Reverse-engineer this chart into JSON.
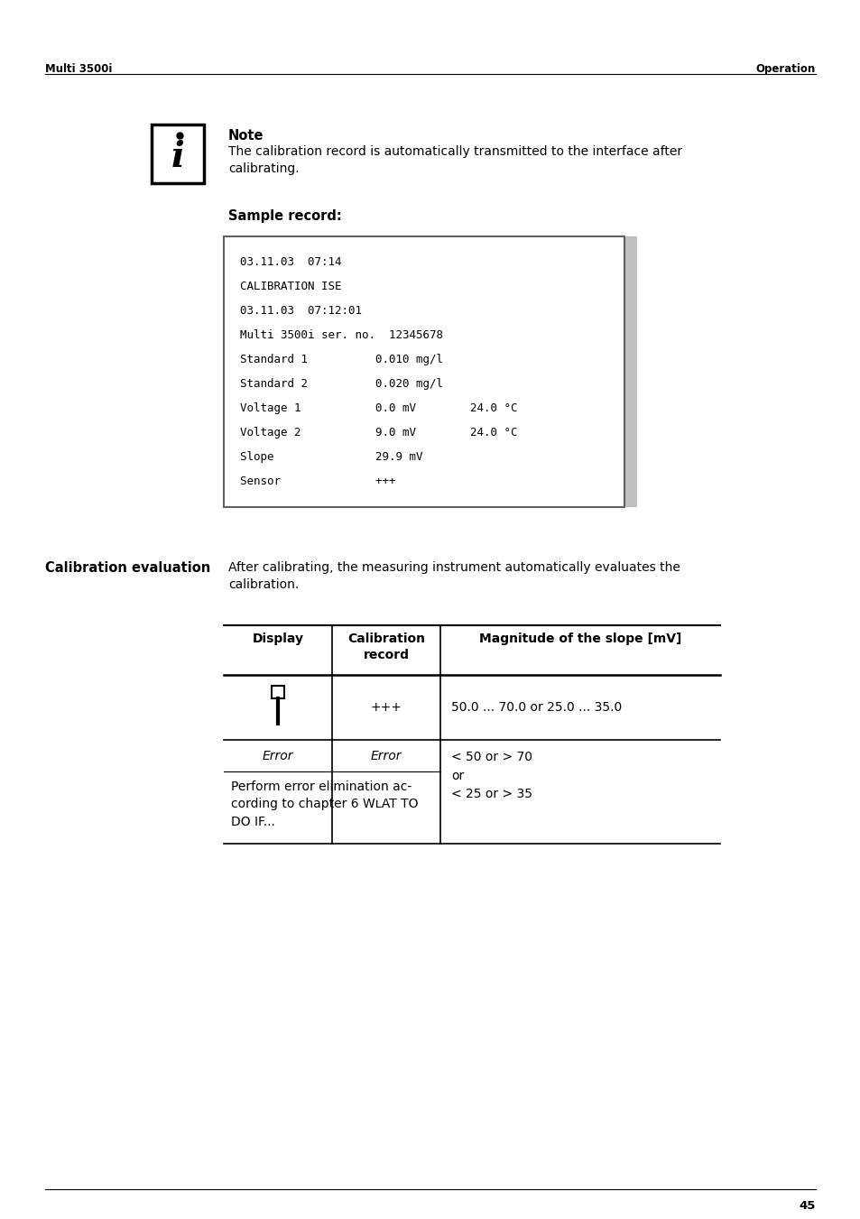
{
  "page_bg": "#ffffff",
  "header_left": "Multi 3500i",
  "header_right": "Operation",
  "footer_number": "45",
  "note_title": "Note",
  "note_text": "The calibration record is automatically transmitted to the interface after\ncalibrating.",
  "sample_record_title": "Sample record:",
  "sample_record_lines": [
    "03.11.03  07:14",
    "CALIBRATION ISE",
    "03.11.03  07:12:01",
    "Multi 3500i ser. no.  12345678",
    "Standard 1          0.010 mg/l",
    "Standard 2          0.020 mg/l",
    "Voltage 1           0.0 mV        24.0 °C",
    "Voltage 2           9.0 mV        24.0 °C",
    "Slope               29.9 mV",
    "Sensor              +++"
  ],
  "calib_eval_title": "Calibration evaluation",
  "calib_eval_intro": "After calibrating, the measuring instrument automatically evaluates the\ncalibration.",
  "table_col1": "Display",
  "table_col2": "Calibration\nrecord",
  "table_col3": "Magnitude of the slope [mV]",
  "table_row1_col2": "+++",
  "table_row1_col3": "50.0 ... 70.0 or 25.0 ... 35.0",
  "table_row2_col1": "Error",
  "table_row2_col2": "Error",
  "table_row23_col3": "< 50 or > 70\nor\n< 25 or > 35",
  "table_row3_text": "Perform error elimination ac-\ncording to chapter 6 WʟAT TO\nDO IF..."
}
